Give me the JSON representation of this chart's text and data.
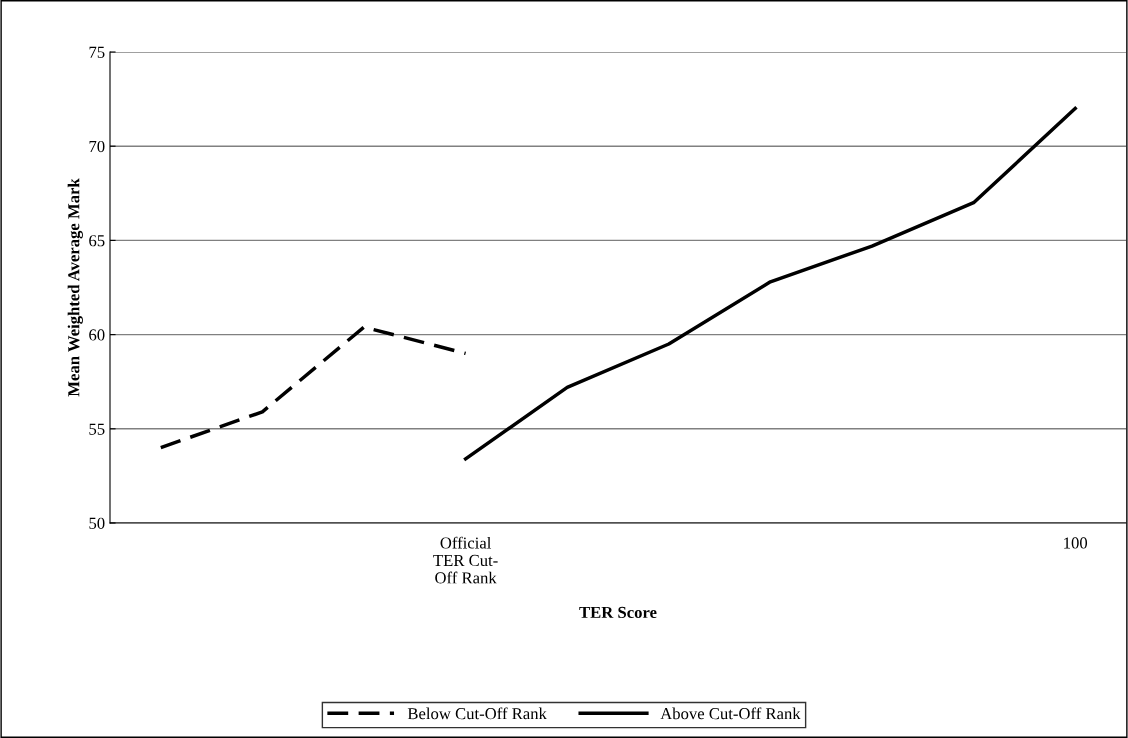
{
  "chart_data": {
    "type": "line",
    "xlabel": "TER Score",
    "ylabel": "Mean Weighted Average Mark",
    "categories": [
      null,
      null,
      null,
      "Official\nTER Cut-\nOff Rank",
      null,
      null,
      null,
      null,
      null,
      "100"
    ],
    "series": [
      {
        "name": "Below Cut-Off Rank",
        "color": "#000000",
        "line_style": "dashed",
        "values": [
          54.0,
          55.9,
          60.4,
          59.0,
          null,
          null,
          null,
          null,
          null,
          null
        ]
      },
      {
        "name": "Above Cut-Off Rank",
        "color": "#000000",
        "line_style": "solid",
        "values": [
          null,
          null,
          null,
          53.4,
          57.2,
          59.5,
          62.8,
          64.7,
          67.0,
          72.0
        ]
      }
    ],
    "ylim": [
      50,
      75
    ],
    "yticks": [
      50,
      55,
      60,
      65,
      70,
      75
    ],
    "grid": "y",
    "legend": "bottom",
    "marker": "none"
  }
}
